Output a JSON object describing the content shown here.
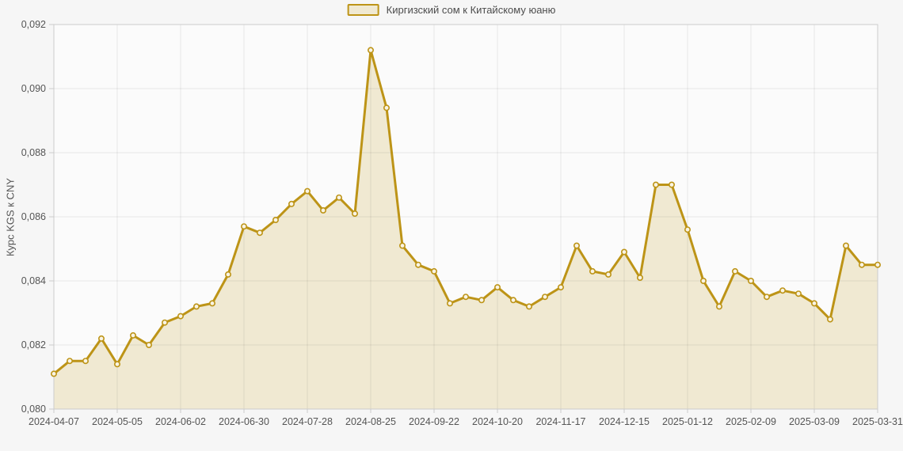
{
  "page": {
    "background": "#f6f6f6",
    "plot_background": "#fbfbfb"
  },
  "legend": {
    "label": "Киргизский сом к Китайскому юаню",
    "swatch_fill": "#f0e9d2",
    "swatch_border": "#bd9417"
  },
  "chart_data": {
    "type": "area",
    "title": "",
    "ylabel": "Курс KGS к CNY",
    "xlabel": "",
    "grid": true,
    "legend_position": "top",
    "ylim": [
      0.08,
      0.092
    ],
    "y_tick_labels": [
      "0,080",
      "0,082",
      "0,084",
      "0,086",
      "0,088",
      "0,090",
      "0,092"
    ],
    "y_tick_values": [
      0.08,
      0.082,
      0.084,
      0.086,
      0.088,
      0.09,
      0.092
    ],
    "x_tick_labels": [
      "2024-04-07",
      "2024-05-05",
      "2024-06-02",
      "2024-06-30",
      "2024-07-28",
      "2024-08-25",
      "2024-09-22",
      "2024-10-20",
      "2024-11-17",
      "2024-12-15",
      "2025-01-12",
      "2025-02-09",
      "2025-03-09",
      "2025-03-31"
    ],
    "x_tick_indices": [
      0,
      4,
      8,
      12,
      16,
      20,
      24,
      28,
      32,
      36,
      40,
      44,
      48,
      52
    ],
    "series": [
      {
        "name": "Киргизский сом к Китайскому юаню",
        "line_color": "#bd9417",
        "fill_color": "#f0e9d2",
        "marker_fill": "#f9f4e4",
        "values": [
          0.0811,
          0.0815,
          0.0815,
          0.0822,
          0.0814,
          0.0823,
          0.082,
          0.0827,
          0.0829,
          0.0832,
          0.0833,
          0.0842,
          0.0857,
          0.0855,
          0.0859,
          0.0864,
          0.0868,
          0.0862,
          0.0866,
          0.0861,
          0.0912,
          0.0894,
          0.0851,
          0.0845,
          0.0843,
          0.0833,
          0.0835,
          0.0834,
          0.0838,
          0.0834,
          0.0832,
          0.0835,
          0.0838,
          0.0851,
          0.0843,
          0.0842,
          0.0849,
          0.0841,
          0.087,
          0.087,
          0.0856,
          0.084,
          0.0832,
          0.0843,
          0.084,
          0.0835,
          0.0837,
          0.0836,
          0.0833,
          0.0828,
          0.0851,
          0.0845,
          0.0845
        ]
      }
    ],
    "axis_text_color": "#555555",
    "grid_color": "rgba(0,0,0,0.08)",
    "border_color": "#cccccc"
  }
}
